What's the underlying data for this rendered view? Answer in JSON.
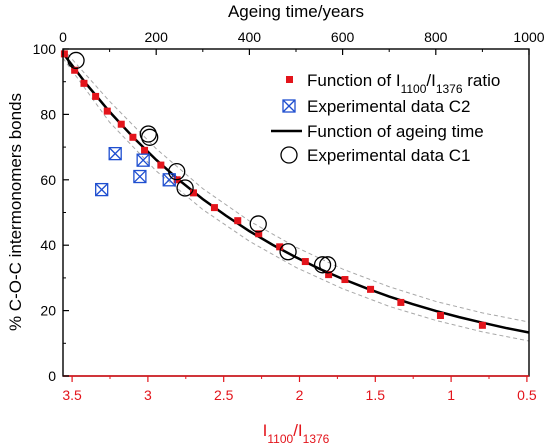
{
  "chart_data": {
    "type": "scatter",
    "title": "",
    "top_axis": {
      "label": "Ageing time/years",
      "range": [
        0,
        1000
      ],
      "ticks": [
        "0",
        "200",
        "400",
        "600",
        "800",
        "1000"
      ]
    },
    "bottom_axis": {
      "label_main": "I",
      "label_sub1": "1100",
      "label_sep": "/I",
      "label_sub2": "1376",
      "scale": "reciprocal",
      "ticks": [
        "3.5",
        "3",
        "2.5",
        "2",
        "1.5",
        "1",
        "0.5"
      ],
      "color": "#e3141b"
    },
    "y_axis": {
      "label": "% C-O-C intermonomers bonds",
      "range": [
        0,
        100
      ],
      "ticks": [
        "0",
        "20",
        "40",
        "60",
        "80",
        "100"
      ]
    },
    "grid": false,
    "legend_position": "top-right",
    "legend": {
      "function_ratio": {
        "pre": "Function of I",
        "sub1": "1100",
        "mid": "/I",
        "sub2": "1376",
        "post": " ratio"
      },
      "experimental_c2": "Experimental data C2",
      "function_time": "Function of ageing time",
      "experimental_c1": "Experimental data C1"
    },
    "series": [
      {
        "name": "Function of ageing time",
        "kind": "line",
        "color": "#000000",
        "model": "exponential decay",
        "x_years": [
          0,
          50,
          100,
          150,
          200,
          250,
          300,
          350,
          400,
          450,
          500,
          550,
          600,
          650,
          700,
          750,
          800,
          850,
          900,
          950,
          1000
        ],
        "y": [
          98.7,
          89.3,
          80.8,
          73.1,
          66.1,
          59.8,
          54.1,
          49.0,
          44.3,
          40.1,
          36.3,
          32.8,
          29.7,
          26.9,
          24.3,
          22.0,
          19.9,
          18.0,
          16.3,
          14.7,
          13.3
        ]
      },
      {
        "name": "Confidence band",
        "kind": "band",
        "color": "#a8a8a8",
        "x_years": [
          0,
          100,
          200,
          300,
          400,
          500,
          600,
          700,
          800,
          900,
          1000
        ],
        "upper": [
          100,
          84.0,
          69.5,
          57.3,
          47.4,
          39.4,
          32.7,
          27.3,
          22.8,
          19.3,
          16.5
        ],
        "lower": [
          97.2,
          77.6,
          62.7,
          50.9,
          41.2,
          33.2,
          26.7,
          21.3,
          17.0,
          13.5,
          10.7
        ]
      },
      {
        "name": "Function of I1100/I1376 ratio",
        "kind": "scatter",
        "marker": "square",
        "color": "#e3141b",
        "x_years": [
          3,
          25,
          45,
          70,
          95,
          125,
          150,
          175,
          210,
          245,
          280,
          325,
          375,
          420,
          465,
          520,
          570,
          605,
          660,
          725,
          810,
          900
        ],
        "y": [
          98.5,
          93.5,
          89.5,
          85.5,
          81.0,
          77.0,
          73.0,
          69.0,
          64.5,
          60.0,
          56.0,
          51.5,
          47.5,
          43.5,
          39.5,
          35.0,
          31.0,
          29.5,
          26.5,
          22.5,
          18.5,
          15.5
        ]
      },
      {
        "name": "Experimental data C2",
        "kind": "scatter",
        "marker": "square-x",
        "color": "#1f4fd0",
        "x_years": [
          83,
          112,
          165,
          172,
          228
        ],
        "y": [
          57.0,
          68.0,
          61.0,
          66.0,
          60.0
        ]
      },
      {
        "name": "Experimental data C1",
        "kind": "scatter",
        "marker": "circle",
        "color": "#000000",
        "x_years": [
          28,
          183,
          186,
          244,
          262,
          419,
          483,
          557,
          568
        ],
        "y": [
          96.5,
          74.0,
          73.0,
          62.5,
          57.5,
          46.5,
          38.0,
          34.0,
          34.0
        ]
      }
    ]
  }
}
